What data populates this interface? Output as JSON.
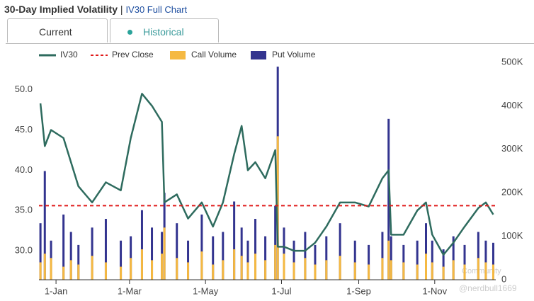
{
  "header": {
    "title": "30-Day Implied Volatility",
    "separator": "|",
    "link": "IV30 Full Chart"
  },
  "tabs": [
    "Current",
    "Historical"
  ],
  "watermark": {
    "community": "Community",
    "handle": "@nerdbull1669"
  },
  "chart_data": {
    "type": "line",
    "x": [
      -12.5,
      -9,
      -4,
      6,
      12,
      18,
      29,
      40,
      52,
      60,
      69,
      77,
      85,
      87,
      97,
      106,
      117,
      126,
      134,
      143,
      149,
      154,
      160,
      168,
      176,
      178,
      183,
      191,
      200,
      208,
      217,
      228,
      240,
      251,
      262,
      267,
      269,
      279,
      290,
      297,
      302,
      311,
      319,
      328,
      339,
      345,
      351
    ],
    "series": [
      {
        "name": "IV30",
        "type": "line",
        "axis": "y",
        "color": "#2e6b5e",
        "values": [
          48.3,
          43,
          45,
          44,
          41,
          38,
          36,
          38.5,
          37.5,
          44,
          49.5,
          48,
          46,
          36,
          37,
          34,
          36,
          33,
          36,
          42,
          45.5,
          40,
          41,
          39,
          42.5,
          30.5,
          30.5,
          30,
          30,
          31,
          33,
          36,
          36,
          35.5,
          39,
          40,
          32,
          32,
          35,
          36,
          32,
          29.5,
          31,
          33,
          35.3,
          36,
          34.5
        ]
      },
      {
        "name": "Call Volume",
        "type": "bar",
        "axis": "y2",
        "color": "#f5b942",
        "values": [
          40000,
          60000,
          50000,
          30000,
          45000,
          35000,
          55000,
          40000,
          30000,
          50000,
          70000,
          45000,
          60000,
          120000,
          50000,
          40000,
          65000,
          35000,
          45000,
          70000,
          55000,
          40000,
          60000,
          45000,
          80000,
          330000,
          60000,
          40000,
          50000,
          35000,
          45000,
          55000,
          40000,
          35000,
          50000,
          90000,
          45000,
          40000,
          35000,
          60000,
          40000,
          30000,
          45000,
          35000,
          50000,
          40000,
          35000
        ]
      },
      {
        "name": "Put Volume",
        "type": "bar",
        "axis": "y2",
        "color": "#33348f",
        "values": [
          130000,
          250000,
          90000,
          150000,
          110000,
          80000,
          120000,
          140000,
          90000,
          100000,
          160000,
          120000,
          110000,
          200000,
          130000,
          90000,
          150000,
          100000,
          110000,
          180000,
          120000,
          90000,
          140000,
          100000,
          170000,
          490000,
          120000,
          90000,
          110000,
          80000,
          100000,
          130000,
          90000,
          80000,
          110000,
          370000,
          100000,
          80000,
          90000,
          130000,
          90000,
          70000,
          100000,
          80000,
          110000,
          90000,
          85000
        ]
      }
    ],
    "prev_close": {
      "name": "Prev Close",
      "value": 35.6,
      "color": "#e01b1b"
    },
    "xlim": [
      -13.7,
      353
    ],
    "xticks": [
      {
        "value": 0,
        "label": "1-Jan"
      },
      {
        "value": 59,
        "label": "1-Mar"
      },
      {
        "value": 120,
        "label": "1-May"
      },
      {
        "value": 181,
        "label": "1-Jul"
      },
      {
        "value": 243,
        "label": "1-Sep"
      },
      {
        "value": 304,
        "label": "1-Nov"
      }
    ],
    "ylim": [
      26.4,
      53.4
    ],
    "yticks": [
      {
        "value": 30,
        "label": "30.0"
      },
      {
        "value": 35,
        "label": "35.0"
      },
      {
        "value": 40,
        "label": "40.0"
      },
      {
        "value": 45,
        "label": "45.0"
      },
      {
        "value": 50,
        "label": "50.0"
      }
    ],
    "y2lim": [
      0,
      500000
    ],
    "y2ticks": [
      0,
      {
        "value": 100000,
        "label": "100K"
      },
      {
        "value": 200000,
        "label": "200K"
      },
      {
        "value": 300000,
        "label": "300K"
      },
      {
        "value": 400000,
        "label": "400K"
      },
      {
        "value": 500000,
        "label": "500K"
      }
    ]
  }
}
